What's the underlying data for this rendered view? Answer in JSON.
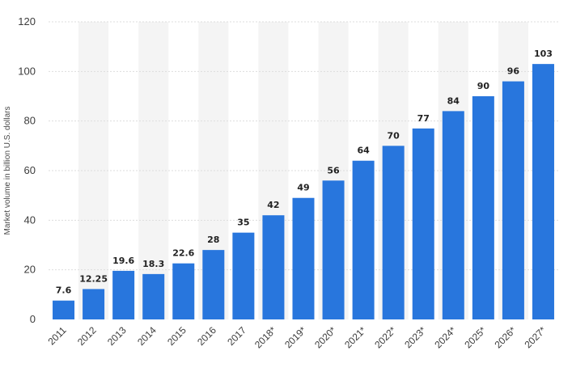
{
  "chart_data": {
    "type": "bar",
    "categories": [
      "2011",
      "2012",
      "2013",
      "2014",
      "2015",
      "2016",
      "2017",
      "2018*",
      "2019*",
      "2020*",
      "2021*",
      "2022*",
      "2023*",
      "2024*",
      "2025*",
      "2026*",
      "2027*"
    ],
    "values": [
      7.6,
      12.25,
      19.6,
      18.3,
      22.6,
      28,
      35,
      42,
      49,
      56,
      64,
      70,
      77,
      84,
      90,
      96,
      103
    ],
    "value_labels": [
      "7.6",
      "12.25",
      "19.6",
      "18.3",
      "22.6",
      "28",
      "35",
      "42",
      "49",
      "56",
      "64",
      "70",
      "77",
      "84",
      "90",
      "96",
      "103"
    ],
    "title": "",
    "xlabel": "",
    "ylabel": "Market volume in billion U.S. dollars",
    "ylim": [
      0,
      120
    ],
    "yticks": [
      0,
      20,
      40,
      60,
      80,
      100,
      120
    ],
    "grid": true,
    "legend": "none",
    "colors": {
      "bar": "#2876dd",
      "band": "#f4f4f4",
      "gridline": "#dddddd"
    }
  }
}
